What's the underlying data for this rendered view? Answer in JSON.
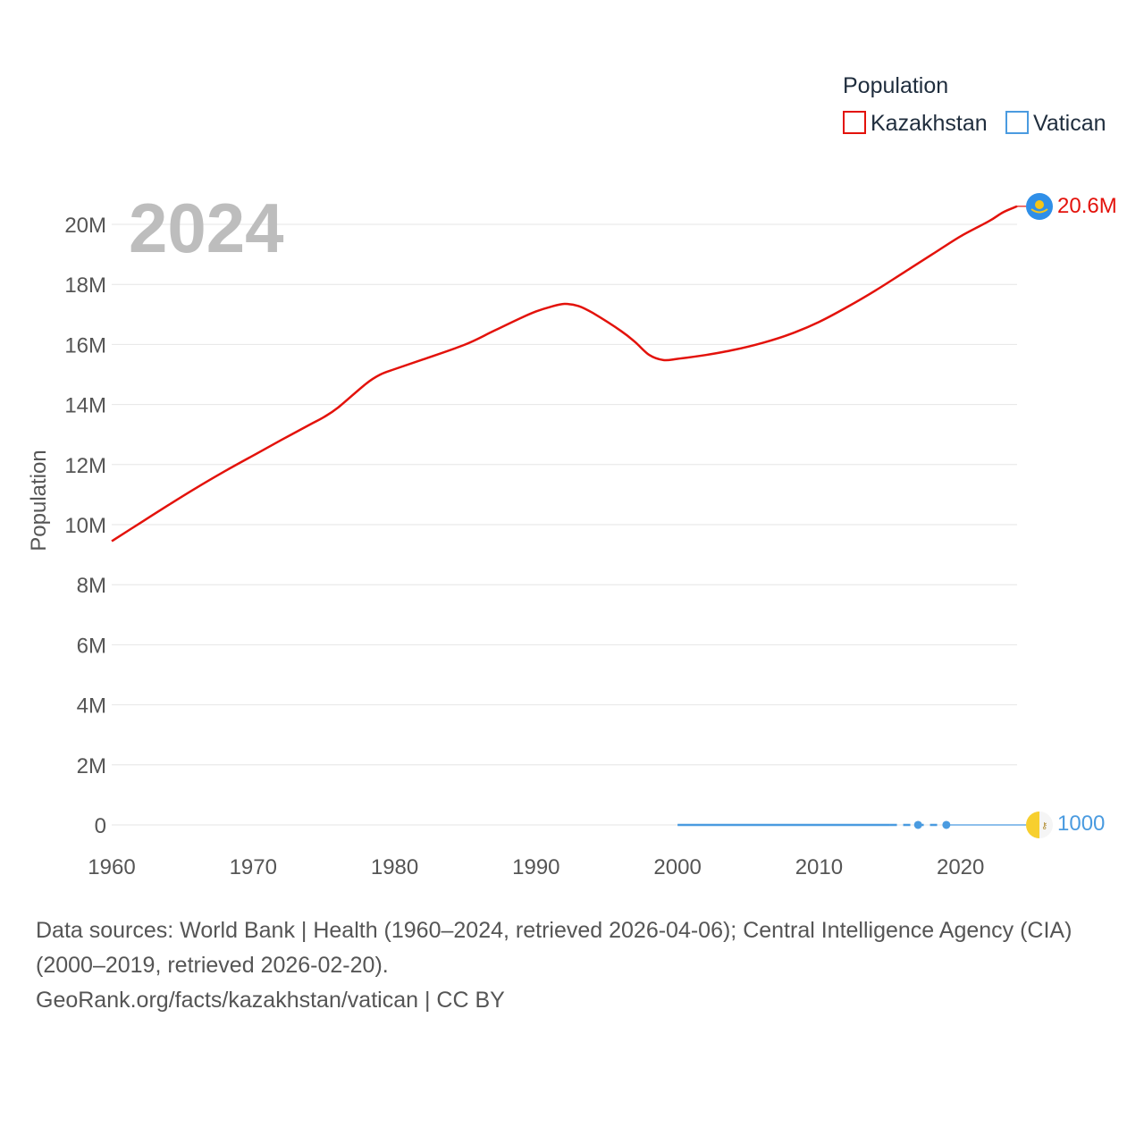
{
  "legend": {
    "title": "Population",
    "items": [
      {
        "label": "Kazakhstan",
        "color": "#e3120b"
      },
      {
        "label": "Vatican",
        "color": "#4a9be0"
      }
    ]
  },
  "year_label": "2024",
  "footer": {
    "sources": "Data sources: World Bank | Health (1960–2024, retrieved 2026-04-06); Central Intelligence Agency (CIA) (2000–2019, retrieved 2026-02-20).",
    "link": "GeoRank.org/facts/kazakhstan/vatican | CC BY"
  },
  "chart_data": {
    "type": "line",
    "title": "Population",
    "ylabel": "Population",
    "xlabel": "",
    "xlim": [
      1960,
      2024
    ],
    "ylim": [
      0,
      20000000
    ],
    "x_ticks": [
      1960,
      1970,
      1980,
      1990,
      2000,
      2010,
      2020
    ],
    "x_tick_labels": [
      "1960",
      "1970",
      "1980",
      "1990",
      "2000",
      "2010",
      "2020"
    ],
    "y_ticks": [
      0,
      2000000,
      4000000,
      6000000,
      8000000,
      10000000,
      12000000,
      14000000,
      16000000,
      18000000,
      20000000
    ],
    "y_tick_labels": [
      "0",
      "2M",
      "4M",
      "6M",
      "8M",
      "10M",
      "12M",
      "14M",
      "16M",
      "18M",
      "20M"
    ],
    "grid": true,
    "legend_position": "top-right",
    "series": [
      {
        "name": "Kazakhstan",
        "color": "#e3120b",
        "end_label": "20.6M",
        "points": [
          [
            1960,
            9450000
          ],
          [
            1962,
            10050000
          ],
          [
            1964,
            10650000
          ],
          [
            1966,
            11230000
          ],
          [
            1968,
            11780000
          ],
          [
            1970,
            12300000
          ],
          [
            1972,
            12820000
          ],
          [
            1974,
            13330000
          ],
          [
            1975,
            13580000
          ],
          [
            1976,
            13900000
          ],
          [
            1978,
            14700000
          ],
          [
            1979,
            15000000
          ],
          [
            1980,
            15180000
          ],
          [
            1982,
            15500000
          ],
          [
            1985,
            16000000
          ],
          [
            1987,
            16450000
          ],
          [
            1989,
            16900000
          ],
          [
            1990,
            17100000
          ],
          [
            1991,
            17250000
          ],
          [
            1992,
            17350000
          ],
          [
            1993,
            17280000
          ],
          [
            1994,
            17050000
          ],
          [
            1996,
            16450000
          ],
          [
            1997,
            16080000
          ],
          [
            1998,
            15650000
          ],
          [
            1999,
            15480000
          ],
          [
            2000,
            15520000
          ],
          [
            2002,
            15650000
          ],
          [
            2004,
            15820000
          ],
          [
            2006,
            16050000
          ],
          [
            2008,
            16350000
          ],
          [
            2010,
            16750000
          ],
          [
            2012,
            17250000
          ],
          [
            2014,
            17800000
          ],
          [
            2016,
            18400000
          ],
          [
            2018,
            19000000
          ],
          [
            2020,
            19600000
          ],
          [
            2022,
            20100000
          ],
          [
            2023,
            20400000
          ],
          [
            2024,
            20600000
          ]
        ]
      },
      {
        "name": "Vatican",
        "color": "#4a9be0",
        "end_label": "1000",
        "points": [
          [
            2000,
            900
          ],
          [
            2015,
            1000
          ],
          [
            2017,
            1000
          ],
          [
            2019,
            1000
          ],
          [
            2024,
            1000
          ]
        ]
      }
    ]
  }
}
